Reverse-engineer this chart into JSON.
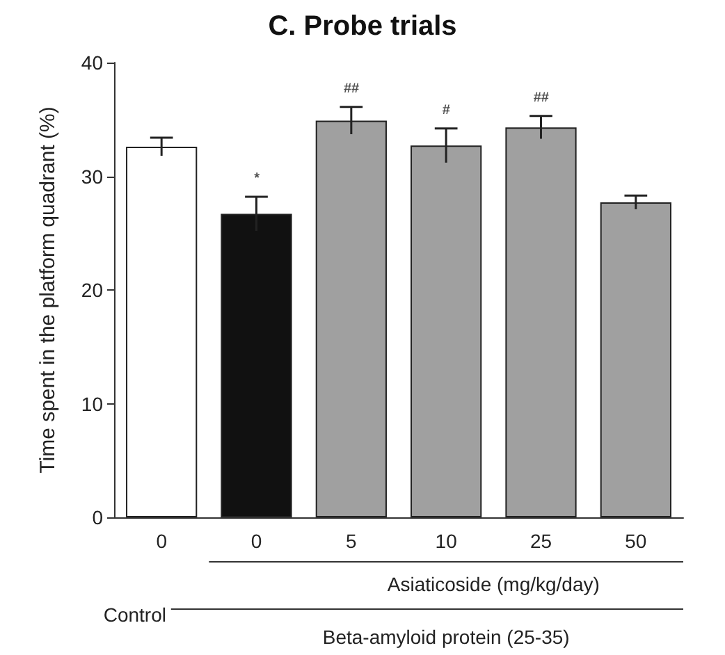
{
  "chart_data": {
    "type": "bar",
    "title": "C. Probe trials",
    "ylabel": "Time spent in the platform quadrant (%)",
    "xlabel": "Asiaticoside (mg/kg/day)",
    "annotations": [
      "Control",
      "Beta-amyloid protein (25-35)"
    ],
    "categories": [
      "0",
      "0",
      "5",
      "10",
      "25",
      "50"
    ],
    "values": [
      32.6,
      26.7,
      34.9,
      32.7,
      34.3,
      27.7
    ],
    "errors": [
      0.8,
      1.5,
      1.2,
      1.5,
      1.0,
      0.6
    ],
    "value_labels": [
      null,
      "*",
      "##",
      "#",
      "##",
      null
    ],
    "colors": [
      "#ffffff",
      "#111111",
      "#a0a0a0",
      "#a0a0a0",
      "#a0a0a0",
      "#a0a0a0"
    ],
    "ylim": [
      0,
      40
    ],
    "yticks": [
      0,
      10,
      20,
      30,
      40
    ],
    "grid": false
  }
}
